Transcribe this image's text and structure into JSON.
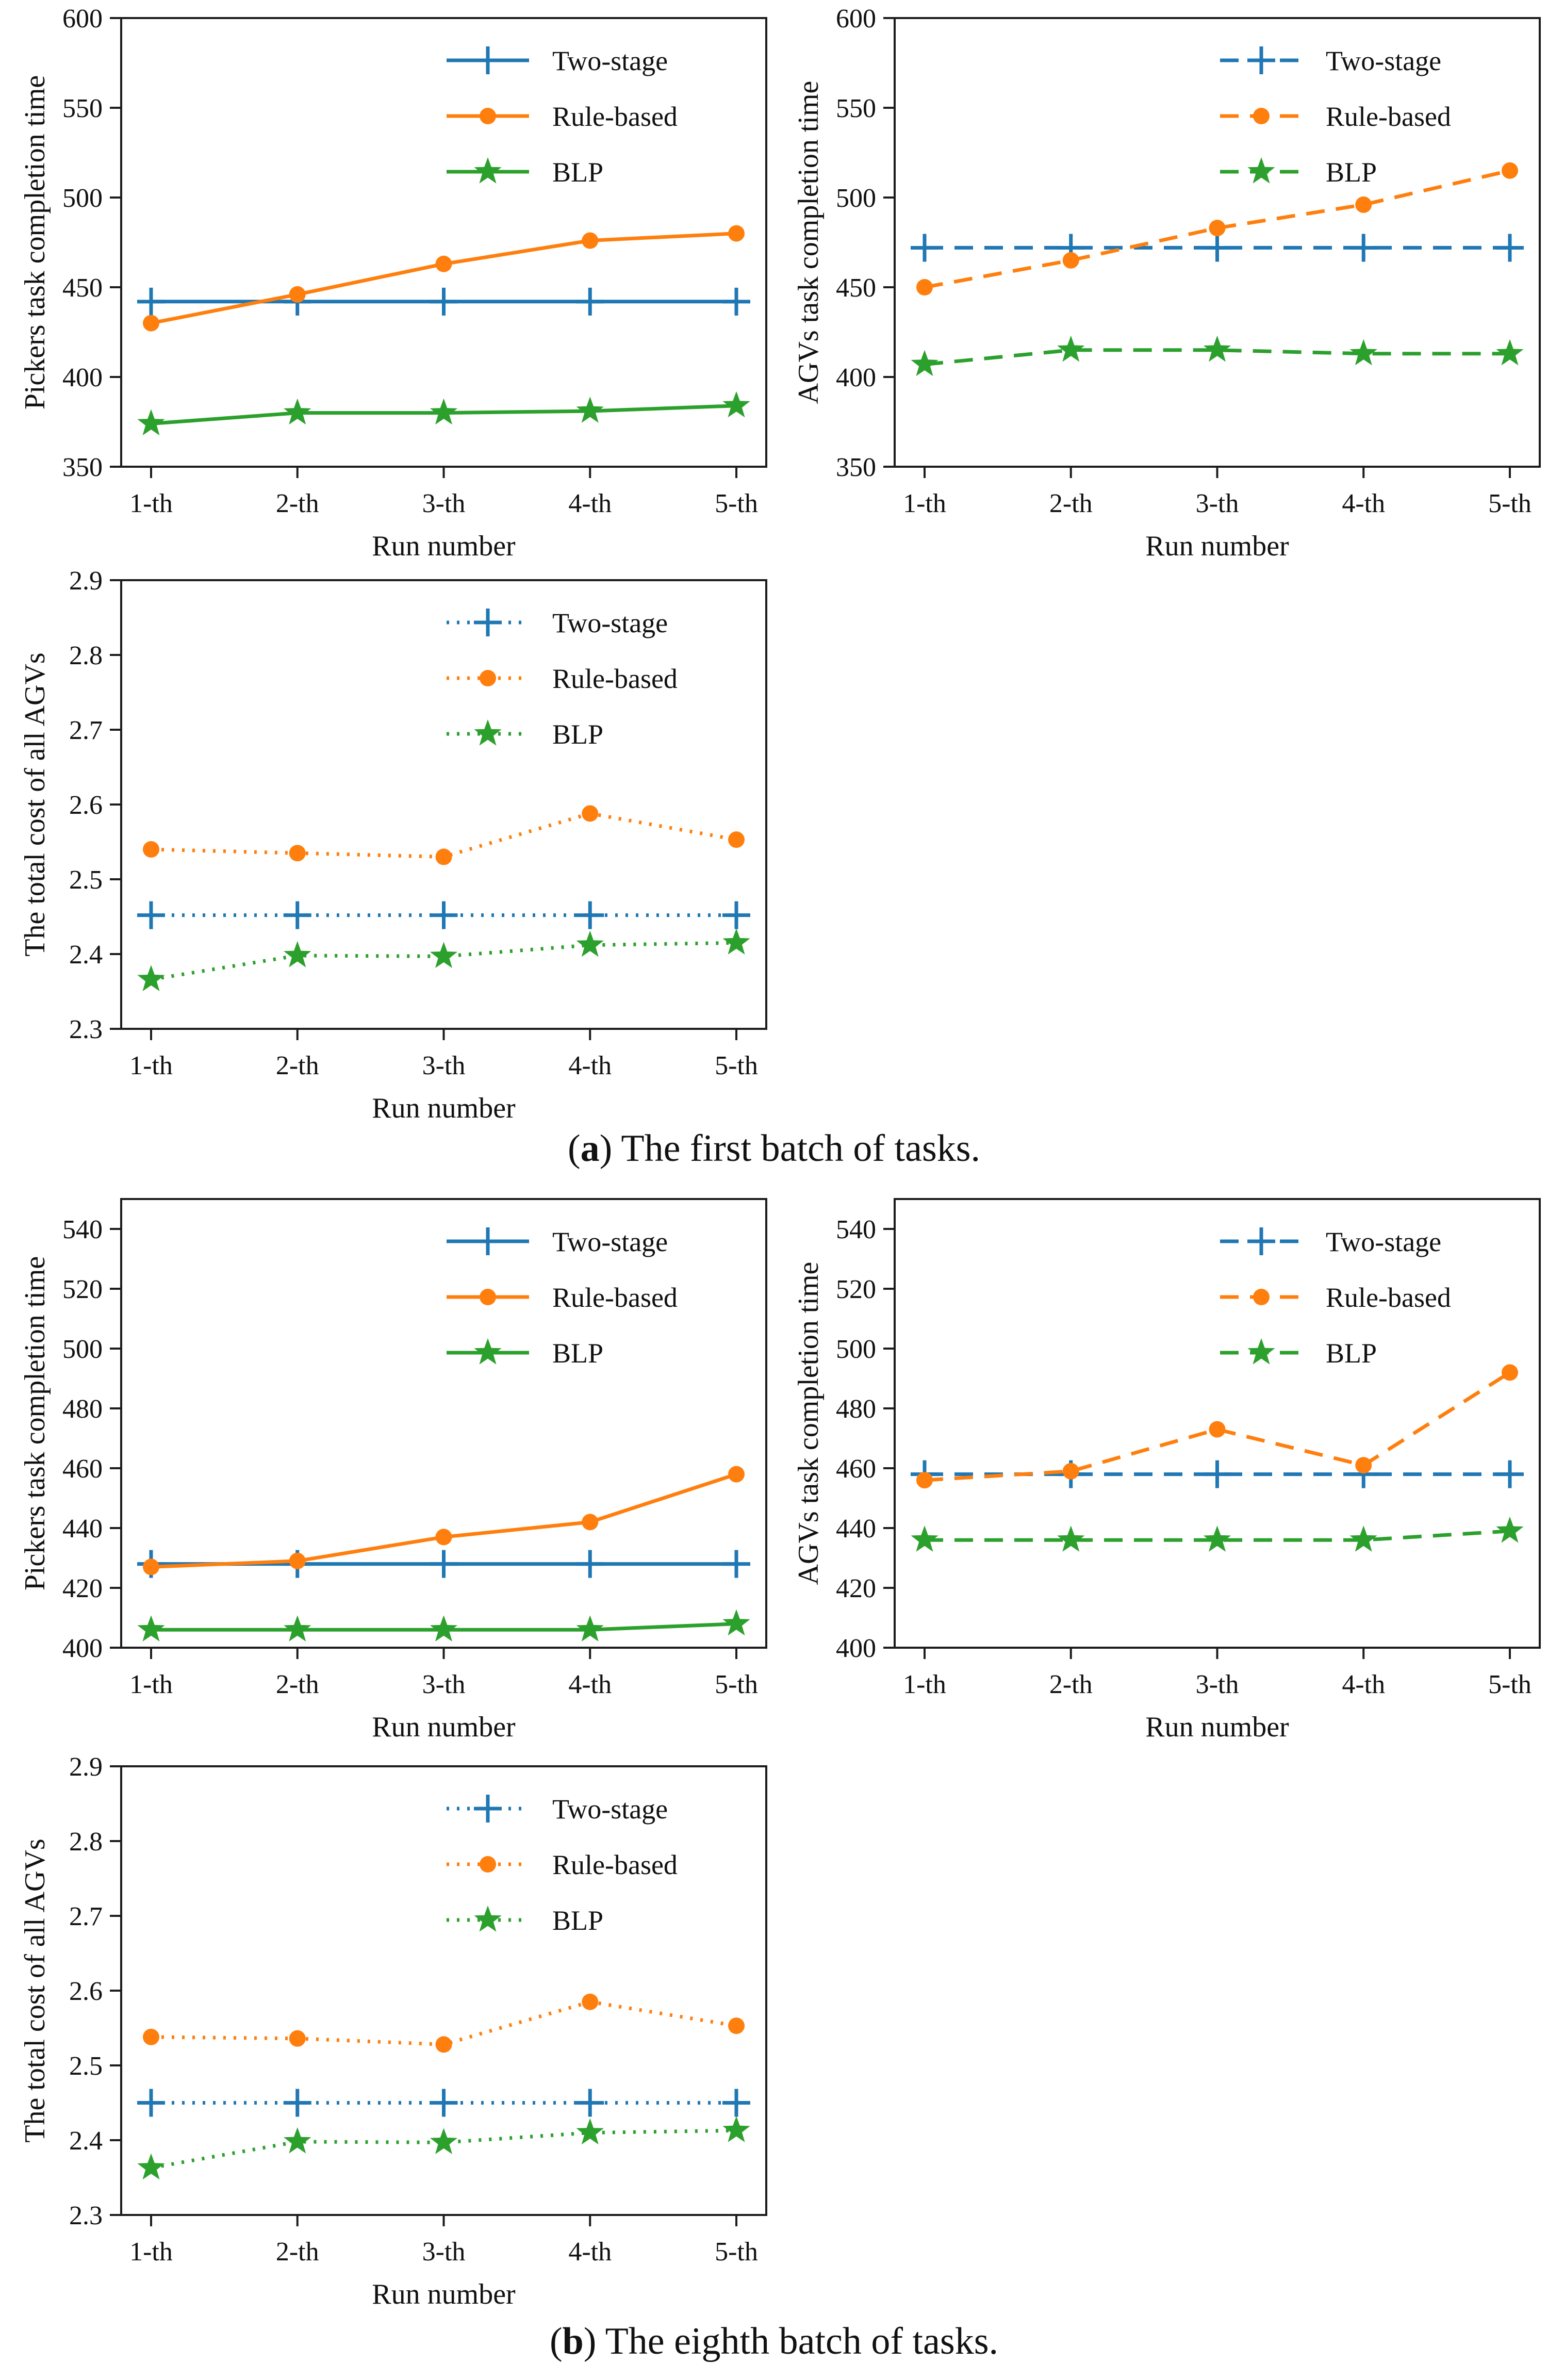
{
  "colors": {
    "two_stage": "#1f77b4",
    "rule_based": "#ff7f0e",
    "blp": "#2ca02c",
    "axis": "#1c1c1c",
    "text": "#111111"
  },
  "captions": {
    "a": {
      "open": "(",
      "letter": "a",
      "rest": ") The first batch of tasks."
    },
    "b": {
      "open": "(",
      "letter": "b",
      "rest": ") The eighth batch of tasks."
    }
  },
  "chart_data": [
    {
      "id": "pickers-batch1",
      "type": "line",
      "title": "",
      "xlabel": "Run number",
      "ylabel": "Pickers task completion time",
      "categories": [
        "1-th",
        "2-th",
        "3-th",
        "4-th",
        "5-th"
      ],
      "ylim": [
        350,
        600
      ],
      "yticks": [
        350,
        400,
        450,
        500,
        550,
        600
      ],
      "ytick_labels": [
        "350",
        "400",
        "450",
        "500",
        "550",
        "600"
      ],
      "line_style": "solid",
      "grid": false,
      "legend_position": "top-right",
      "series": [
        {
          "name": "Two-stage",
          "color": "#1f77b4",
          "marker": "plus",
          "values": [
            442,
            442,
            442,
            442,
            442
          ]
        },
        {
          "name": "Rule-based",
          "color": "#ff7f0e",
          "marker": "circle",
          "values": [
            430,
            446,
            463,
            476,
            480
          ]
        },
        {
          "name": "BLP",
          "color": "#2ca02c",
          "marker": "star",
          "values": [
            374,
            380,
            380,
            381,
            384
          ]
        }
      ]
    },
    {
      "id": "agvs-batch1",
      "type": "line",
      "title": "",
      "xlabel": "Run number",
      "ylabel": "AGVs task completion time",
      "categories": [
        "1-th",
        "2-th",
        "3-th",
        "4-th",
        "5-th"
      ],
      "ylim": [
        350,
        600
      ],
      "yticks": [
        350,
        400,
        450,
        500,
        550,
        600
      ],
      "ytick_labels": [
        "350",
        "400",
        "450",
        "500",
        "550",
        "600"
      ],
      "line_style": "dashed",
      "grid": false,
      "legend_position": "top-right",
      "series": [
        {
          "name": "Two-stage",
          "color": "#1f77b4",
          "marker": "plus",
          "values": [
            472,
            472,
            472,
            472,
            472
          ]
        },
        {
          "name": "Rule-based",
          "color": "#ff7f0e",
          "marker": "circle",
          "values": [
            450,
            465,
            483,
            496,
            515
          ]
        },
        {
          "name": "BLP",
          "color": "#2ca02c",
          "marker": "star",
          "values": [
            407,
            415,
            415,
            413,
            413
          ]
        }
      ]
    },
    {
      "id": "cost-batch1",
      "type": "line",
      "title": "",
      "xlabel": "Run number",
      "ylabel": "The total cost of all AGVs",
      "categories": [
        "1-th",
        "2-th",
        "3-th",
        "4-th",
        "5-th"
      ],
      "ylim": [
        2.3,
        2.9
      ],
      "yticks": [
        2.3,
        2.4,
        2.5,
        2.6,
        2.7,
        2.8,
        2.9
      ],
      "ytick_labels": [
        "2.3",
        "2.4",
        "2.5",
        "2.6",
        "2.7",
        "2.8",
        "2.9"
      ],
      "line_style": "dotted",
      "grid": false,
      "legend_position": "top-right",
      "series": [
        {
          "name": "Two-stage",
          "color": "#1f77b4",
          "marker": "plus",
          "values": [
            2.452,
            2.452,
            2.452,
            2.452,
            2.452
          ]
        },
        {
          "name": "Rule-based",
          "color": "#ff7f0e",
          "marker": "circle",
          "values": [
            2.54,
            2.535,
            2.53,
            2.588,
            2.553
          ]
        },
        {
          "name": "BLP",
          "color": "#2ca02c",
          "marker": "star",
          "values": [
            2.366,
            2.398,
            2.397,
            2.412,
            2.415
          ]
        }
      ]
    },
    {
      "id": "pickers-batch8",
      "type": "line",
      "title": "",
      "xlabel": "Run number",
      "ylabel": "Pickers task completion time",
      "categories": [
        "1-th",
        "2-th",
        "3-th",
        "4-th",
        "5-th"
      ],
      "ylim": [
        400,
        550
      ],
      "yticks": [
        400,
        420,
        440,
        460,
        480,
        500,
        520,
        540
      ],
      "ytick_labels": [
        "400",
        "420",
        "440",
        "460",
        "480",
        "500",
        "520",
        "540"
      ],
      "line_style": "solid",
      "grid": false,
      "legend_position": "top-right",
      "series": [
        {
          "name": "Two-stage",
          "color": "#1f77b4",
          "marker": "plus",
          "values": [
            428,
            428,
            428,
            428,
            428
          ]
        },
        {
          "name": "Rule-based",
          "color": "#ff7f0e",
          "marker": "circle",
          "values": [
            427,
            429,
            437,
            442,
            458
          ]
        },
        {
          "name": "BLP",
          "color": "#2ca02c",
          "marker": "star",
          "values": [
            406,
            406,
            406,
            406,
            408
          ]
        }
      ]
    },
    {
      "id": "agvs-batch8",
      "type": "line",
      "title": "",
      "xlabel": "Run number",
      "ylabel": "AGVs task completion time",
      "categories": [
        "1-th",
        "2-th",
        "3-th",
        "4-th",
        "5-th"
      ],
      "ylim": [
        400,
        550
      ],
      "yticks": [
        400,
        420,
        440,
        460,
        480,
        500,
        520,
        540
      ],
      "ytick_labels": [
        "400",
        "420",
        "440",
        "460",
        "480",
        "500",
        "520",
        "540"
      ],
      "line_style": "dashed",
      "grid": false,
      "legend_position": "top-right",
      "series": [
        {
          "name": "Two-stage",
          "color": "#1f77b4",
          "marker": "plus",
          "values": [
            458,
            458,
            458,
            458,
            458
          ]
        },
        {
          "name": "Rule-based",
          "color": "#ff7f0e",
          "marker": "circle",
          "values": [
            456,
            459,
            473,
            461,
            492
          ]
        },
        {
          "name": "BLP",
          "color": "#2ca02c",
          "marker": "star",
          "values": [
            436,
            436,
            436,
            436,
            439
          ]
        }
      ]
    },
    {
      "id": "cost-batch8",
      "type": "line",
      "title": "",
      "xlabel": "Run number",
      "ylabel": "The total cost of all AGVs",
      "categories": [
        "1-th",
        "2-th",
        "3-th",
        "4-th",
        "5-th"
      ],
      "ylim": [
        2.3,
        2.9
      ],
      "yticks": [
        2.3,
        2.4,
        2.5,
        2.6,
        2.7,
        2.8,
        2.9
      ],
      "ytick_labels": [
        "2.3",
        "2.4",
        "2.5",
        "2.6",
        "2.7",
        "2.8",
        "2.9"
      ],
      "line_style": "dotted",
      "grid": false,
      "legend_position": "top-right",
      "series": [
        {
          "name": "Two-stage",
          "color": "#1f77b4",
          "marker": "plus",
          "values": [
            2.45,
            2.45,
            2.45,
            2.45,
            2.45
          ]
        },
        {
          "name": "Rule-based",
          "color": "#ff7f0e",
          "marker": "circle",
          "values": [
            2.538,
            2.536,
            2.528,
            2.585,
            2.553
          ]
        },
        {
          "name": "BLP",
          "color": "#2ca02c",
          "marker": "star",
          "values": [
            2.363,
            2.398,
            2.397,
            2.41,
            2.413
          ]
        }
      ]
    }
  ]
}
